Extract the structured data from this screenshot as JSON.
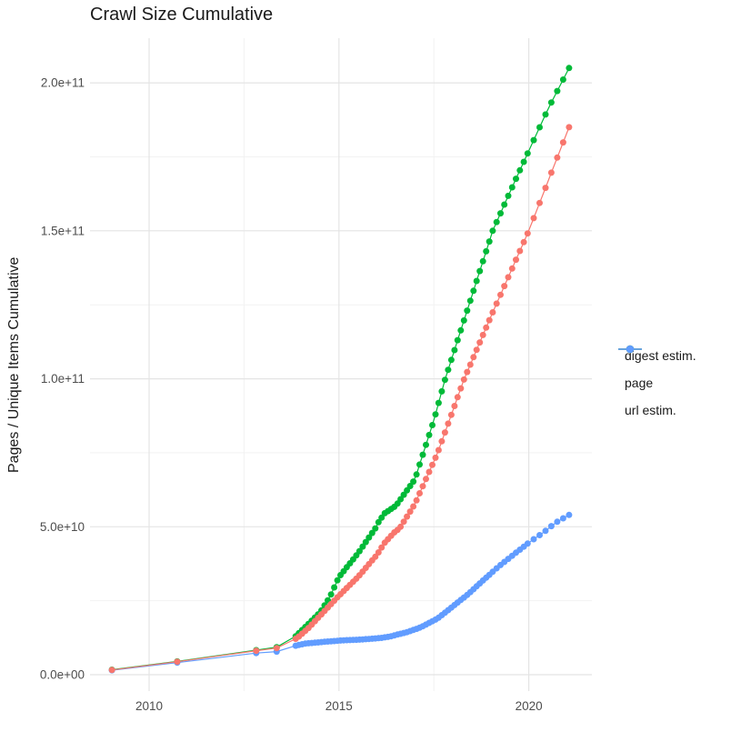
{
  "chart": {
    "title": "Crawl Size Cumulative",
    "ylabel": "Pages / Unique Items Cumulative",
    "xlabel": "",
    "y_ticks": [
      {
        "label": "0.0e+00",
        "value_e9": 0
      },
      {
        "label": "5.0e+10",
        "value_e9": 50
      },
      {
        "label": "1.0e+11",
        "value_e9": 100
      },
      {
        "label": "1.5e+11",
        "value_e9": 150
      },
      {
        "label": "2.0e+11",
        "value_e9": 200
      }
    ],
    "x_ticks": [
      {
        "label": "2010",
        "year": 2010
      },
      {
        "label": "2015",
        "year": 2015
      },
      {
        "label": "2020",
        "year": 2020
      }
    ],
    "y_minor_ticks_e9": [
      25,
      75,
      125,
      175
    ],
    "x_minor_ticks_years": [
      2012.5,
      2017.5
    ],
    "grid": true,
    "legend_position": "right"
  },
  "chart_data": {
    "type": "line",
    "title": "Crawl Size Cumulative",
    "xlabel": "",
    "ylabel": "Pages / Unique Items Cumulative",
    "x_unit": "year (crawl date)",
    "y_unit": "cumulative count, billions (1e9)",
    "xlim_year": [
      2008.4,
      2021.6
    ],
    "ylim_e9": [
      0,
      220
    ],
    "grid": true,
    "legend_position": "right",
    "point_dates": {
      "sparse_years": [
        2009.02,
        2010.74,
        2012.82,
        2013.36
      ],
      "eras": [
        {
          "start": 2013.86,
          "end": 2014.96,
          "n": 14
        },
        {
          "start": 2015.04,
          "end": 2018.96,
          "n": 48
        },
        {
          "start": 2019.05,
          "end": 2019.97,
          "n": 10
        },
        {
          "start": 2020.13,
          "end": 2021.06,
          "n": 7
        }
      ]
    },
    "series": [
      {
        "name": "page",
        "color": "#00BA38",
        "anchors_year_value_e9": [
          [
            2009.02,
            1.7
          ],
          [
            2010.74,
            4.5
          ],
          [
            2012.82,
            8.3
          ],
          [
            2013.36,
            9.3
          ],
          [
            2013.86,
            13.0
          ],
          [
            2014.2,
            17.2
          ],
          [
            2014.5,
            21.0
          ],
          [
            2014.75,
            26.0
          ],
          [
            2015.0,
            33.0
          ],
          [
            2015.5,
            41.0
          ],
          [
            2015.96,
            49.5
          ],
          [
            2016.04,
            51.5
          ],
          [
            2016.2,
            54.5
          ],
          [
            2016.5,
            57.1
          ],
          [
            2017.0,
            66.0
          ],
          [
            2017.5,
            86.0
          ],
          [
            2017.8,
            100.0
          ],
          [
            2018.5,
            128.0
          ],
          [
            2019.05,
            150.0
          ],
          [
            2019.5,
            163.0
          ],
          [
            2020.0,
            177.0
          ],
          [
            2020.5,
            191.0
          ],
          [
            2021.06,
            205.0
          ]
        ]
      },
      {
        "name": "url estim.",
        "color": "#619CFF",
        "anchors_year_value_e9": [
          [
            2009.02,
            1.5
          ],
          [
            2010.74,
            4.1
          ],
          [
            2012.82,
            7.3
          ],
          [
            2013.36,
            7.8
          ],
          [
            2013.86,
            9.8
          ],
          [
            2014.1,
            10.5
          ],
          [
            2014.6,
            11.1
          ],
          [
            2015.1,
            11.6
          ],
          [
            2015.6,
            11.9
          ],
          [
            2016.1,
            12.4
          ],
          [
            2016.35,
            12.9
          ],
          [
            2016.55,
            13.6
          ],
          [
            2016.8,
            14.4
          ],
          [
            2017.0,
            15.3
          ],
          [
            2017.15,
            16.0
          ],
          [
            2017.6,
            19.0
          ],
          [
            2018.0,
            23.1
          ],
          [
            2018.4,
            27.2
          ],
          [
            2018.8,
            31.9
          ],
          [
            2019.2,
            36.5
          ],
          [
            2019.6,
            40.6
          ],
          [
            2020.0,
            44.6
          ],
          [
            2020.4,
            48.2
          ],
          [
            2020.7,
            51.3
          ],
          [
            2021.06,
            54.0
          ]
        ]
      },
      {
        "name": "digest estim.",
        "color": "#F8766D",
        "anchors_year_value_e9": [
          [
            2009.02,
            1.6
          ],
          [
            2010.74,
            4.4
          ],
          [
            2012.82,
            8.1
          ],
          [
            2013.36,
            9.0
          ],
          [
            2013.9,
            12.4
          ],
          [
            2014.2,
            15.8
          ],
          [
            2014.5,
            19.9
          ],
          [
            2015.0,
            26.7
          ],
          [
            2015.5,
            33.0
          ],
          [
            2016.0,
            40.5
          ],
          [
            2016.2,
            44.5
          ],
          [
            2016.45,
            48.0
          ],
          [
            2016.6,
            49.5
          ],
          [
            2017.0,
            57.7
          ],
          [
            2017.6,
            75.0
          ],
          [
            2018.3,
            100.0
          ],
          [
            2019.0,
            121.0
          ],
          [
            2020.0,
            150.0
          ],
          [
            2020.5,
            166.5
          ],
          [
            2021.06,
            185.0
          ]
        ]
      }
    ]
  },
  "legend": {
    "items": [
      {
        "label": "digest estim.",
        "color": "#F8766D"
      },
      {
        "label": "page",
        "color": "#00BA38"
      },
      {
        "label": "url estim.",
        "color": "#619CFF"
      }
    ]
  },
  "colors": {
    "grid_major": "#e4e4e4",
    "grid_minor": "#f2f2f2",
    "tick_text": "#4d4d4d",
    "text": "#1a1a1a",
    "background": "#ffffff"
  }
}
